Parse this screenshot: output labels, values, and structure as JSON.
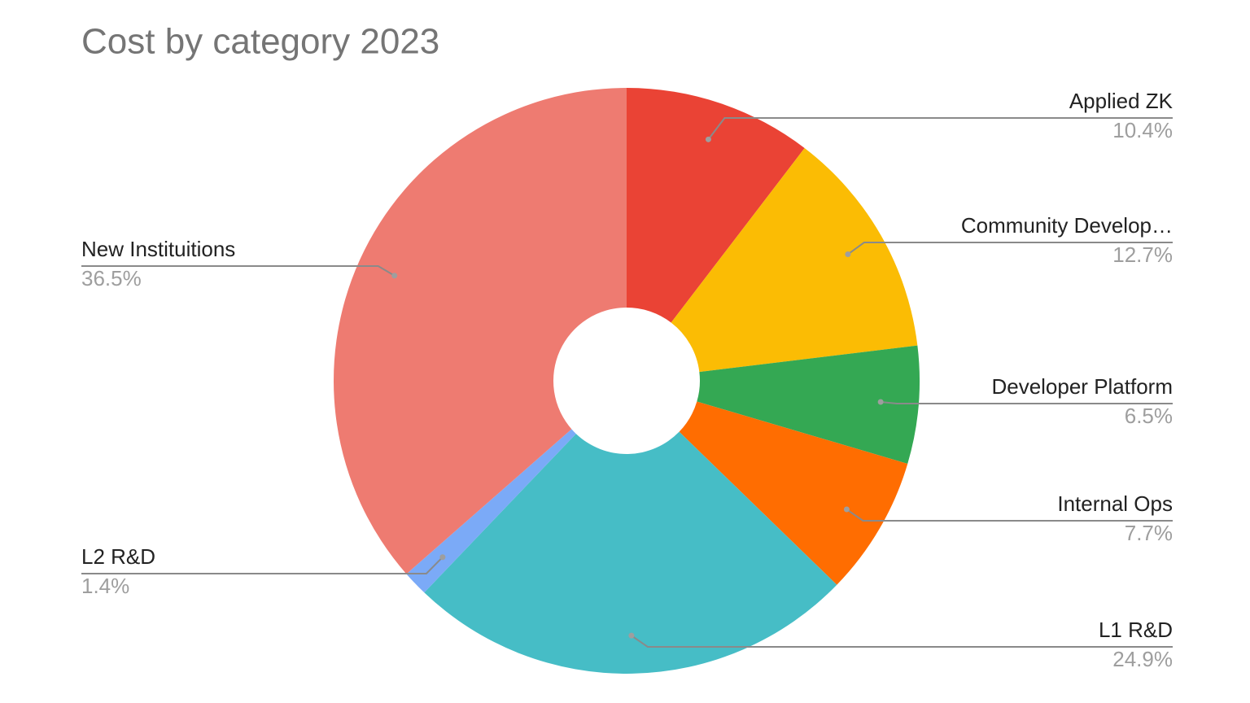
{
  "chart_data": {
    "type": "pie",
    "title": "Cost by category 2023",
    "categories": [
      "Applied ZK",
      "Community Develop…",
      "Developer Platform",
      "Internal Ops",
      "L1 R&D",
      "L2 R&D",
      "New Instituitions"
    ],
    "values": [
      10.4,
      12.7,
      6.5,
      7.7,
      24.9,
      1.4,
      36.5
    ],
    "value_labels": [
      "10.4%",
      "12.7%",
      "6.5%",
      "7.7%",
      "24.9%",
      "1.4%",
      "36.5%"
    ],
    "colors": [
      "#ea4335",
      "#fbbc04",
      "#34a853",
      "#ff6d01",
      "#46bdc6",
      "#7baaf7",
      "#ee7b71"
    ]
  }
}
